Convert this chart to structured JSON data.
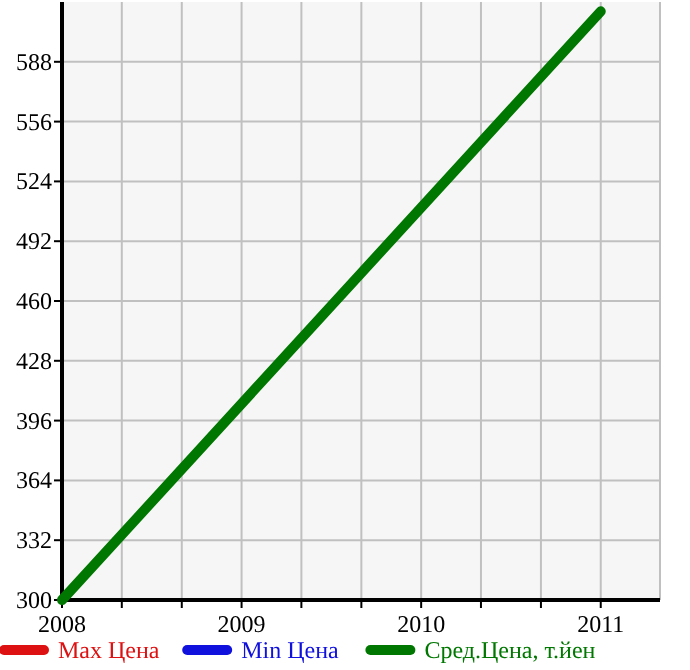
{
  "chart_data": {
    "type": "line",
    "x": [
      2008,
      2011
    ],
    "series": [
      {
        "name": "Max Цена",
        "color": "#dd1111",
        "values": [
          null,
          null
        ]
      },
      {
        "name": "Min Цена",
        "color": "#1111dd",
        "values": [
          null,
          null
        ]
      },
      {
        "name": "Сред.Цена, т.йен",
        "color": "#007700",
        "values": [
          300,
          615
        ]
      }
    ],
    "xlim": [
      2008,
      2011.33
    ],
    "xticks": [
      2008,
      {
        "value": 2008.333,
        "label": null
      },
      {
        "value": 2008.667,
        "label": null
      },
      2009,
      {
        "value": 2009.333,
        "label": null
      },
      {
        "value": 2009.667,
        "label": null
      },
      2010,
      {
        "value": 2010.333,
        "label": null
      },
      {
        "value": 2010.667,
        "label": null
      },
      2011
    ],
    "ylim": [
      300,
      620
    ],
    "yticks": [
      300,
      332,
      364,
      396,
      428,
      460,
      492,
      524,
      556,
      588
    ],
    "grid": true,
    "legend": "bottom",
    "marker": "none",
    "line_style": "solid"
  }
}
